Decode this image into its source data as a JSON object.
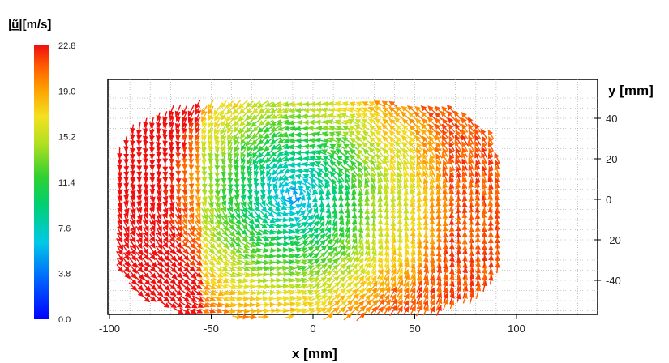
{
  "chart_data": {
    "type": "vector-field",
    "colorbar": {
      "title_symbol": "ũ",
      "title_unit": "[m/s]",
      "ticks": [
        22.8,
        19.0,
        15.2,
        11.4,
        7.6,
        3.8,
        0.0
      ],
      "tick_labels": [
        "22.8",
        "19.0",
        "15.2",
        "11.4",
        "7.6",
        "3.8",
        "0.0"
      ],
      "range": [
        0.0,
        22.8
      ],
      "colors": [
        "#0000ff",
        "#00a0ff",
        "#00e0d0",
        "#20d040",
        "#a0e020",
        "#f0e020",
        "#ffa000",
        "#ff5000",
        "#f01010"
      ]
    },
    "xlabel": "x [mm]",
    "ylabel": "y [mm]",
    "xlim": [
      -100,
      140
    ],
    "ylim": [
      -55,
      55
    ],
    "xticks": [
      -100,
      -50,
      0,
      50,
      100
    ],
    "xtick_labels": [
      "-100",
      "-50",
      "0",
      "50",
      "100"
    ],
    "yticks": [
      40,
      20,
      0,
      -20,
      -40
    ],
    "ytick_labels": [
      "40",
      "20",
      "0",
      "-20",
      "-40"
    ],
    "grid": true,
    "vortex_center": [
      -10,
      2
    ],
    "rotation": "counter-clockwise",
    "data_extent": {
      "x": [
        -95,
        95
      ],
      "y": [
        -58,
        48
      ]
    },
    "speed_range": [
      5.0,
      22.8
    ]
  }
}
